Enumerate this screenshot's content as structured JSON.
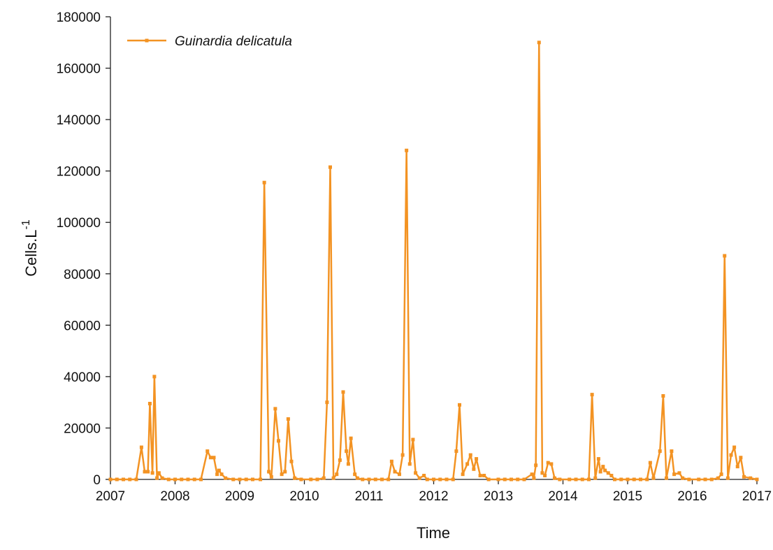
{
  "chart_data": {
    "type": "line",
    "x_label": "Time",
    "y_label": "Cells.L",
    "y_label_superscript": "-1",
    "legend": "top-left",
    "xlim": [
      2007,
      2017
    ],
    "xticks": [
      2007,
      2008,
      2009,
      2010,
      2011,
      2012,
      2013,
      2014,
      2015,
      2016,
      2017
    ],
    "ylim": [
      0,
      180000
    ],
    "yticks": [
      0,
      20000,
      40000,
      60000,
      80000,
      100000,
      120000,
      140000,
      160000,
      180000
    ],
    "x": [
      2007.0,
      2007.1,
      2007.2,
      2007.3,
      2007.4,
      2007.48,
      2007.53,
      2007.58,
      2007.61,
      2007.65,
      2007.68,
      2007.72,
      2007.75,
      2007.8,
      2007.9,
      2008.0,
      2008.1,
      2008.2,
      2008.3,
      2008.4,
      2008.5,
      2008.55,
      2008.6,
      2008.65,
      2008.68,
      2008.72,
      2008.78,
      2008.9,
      2009.0,
      2009.1,
      2009.2,
      2009.32,
      2009.38,
      2009.45,
      2009.49,
      2009.55,
      2009.6,
      2009.65,
      2009.7,
      2009.75,
      2009.8,
      2009.85,
      2009.95,
      2010.1,
      2010.2,
      2010.3,
      2010.35,
      2010.4,
      2010.45,
      2010.5,
      2010.55,
      2010.6,
      2010.65,
      2010.68,
      2010.72,
      2010.78,
      2010.82,
      2010.9,
      2011.0,
      2011.1,
      2011.2,
      2011.3,
      2011.35,
      2011.4,
      2011.47,
      2011.52,
      2011.58,
      2011.63,
      2011.68,
      2011.72,
      2011.78,
      2011.85,
      2011.9,
      2012.0,
      2012.1,
      2012.2,
      2012.3,
      2012.35,
      2012.4,
      2012.45,
      2012.52,
      2012.57,
      2012.62,
      2012.66,
      2012.72,
      2012.78,
      2012.85,
      2013.0,
      2013.1,
      2013.2,
      2013.3,
      2013.4,
      2013.52,
      2013.55,
      2013.58,
      2013.63,
      2013.68,
      2013.72,
      2013.77,
      2013.82,
      2013.87,
      2013.95,
      2014.1,
      2014.2,
      2014.3,
      2014.4,
      2014.45,
      2014.5,
      2014.55,
      2014.58,
      2014.62,
      2014.65,
      2014.7,
      2014.75,
      2014.8,
      2014.9,
      2015.0,
      2015.1,
      2015.2,
      2015.3,
      2015.35,
      2015.4,
      2015.5,
      2015.55,
      2015.6,
      2015.68,
      2015.72,
      2015.8,
      2015.85,
      2015.95,
      2016.1,
      2016.2,
      2016.3,
      2016.4,
      2016.45,
      2016.5,
      2016.55,
      2016.6,
      2016.65,
      2016.7,
      2016.75,
      2016.8,
      2016.9,
      2017.0
    ],
    "series": [
      {
        "name": "Guinardia delicatula",
        "color": "#f39323",
        "values": [
          0,
          0,
          0,
          0,
          0,
          12500,
          3000,
          3000,
          29500,
          2500,
          40000,
          500,
          2500,
          500,
          0,
          0,
          0,
          0,
          0,
          0,
          11000,
          8500,
          8500,
          2000,
          3500,
          2000,
          500,
          0,
          0,
          0,
          0,
          0,
          115500,
          3000,
          1000,
          27500,
          15000,
          2000,
          3000,
          23500,
          7000,
          500,
          0,
          0,
          0,
          500,
          30000,
          121500,
          500,
          2000,
          7500,
          34000,
          11000,
          6000,
          16000,
          2000,
          500,
          0,
          0,
          0,
          0,
          0,
          7000,
          3000,
          2000,
          9500,
          128000,
          6000,
          15500,
          2500,
          500,
          1500,
          0,
          0,
          0,
          0,
          0,
          11000,
          29000,
          2000,
          6000,
          9500,
          4000,
          8000,
          1500,
          1500,
          0,
          0,
          0,
          0,
          0,
          0,
          2000,
          500,
          5500,
          170000,
          2500,
          1500,
          6500,
          6000,
          500,
          0,
          0,
          0,
          0,
          0,
          33000,
          500,
          8000,
          3000,
          5000,
          3500,
          2500,
          1500,
          0,
          0,
          0,
          0,
          0,
          0,
          6500,
          500,
          11000,
          32500,
          500,
          11000,
          2000,
          2500,
          500,
          0,
          0,
          0,
          0,
          500,
          2000,
          87000,
          500,
          9500,
          12500,
          5000,
          8500,
          1000,
          500,
          0
        ]
      }
    ]
  }
}
